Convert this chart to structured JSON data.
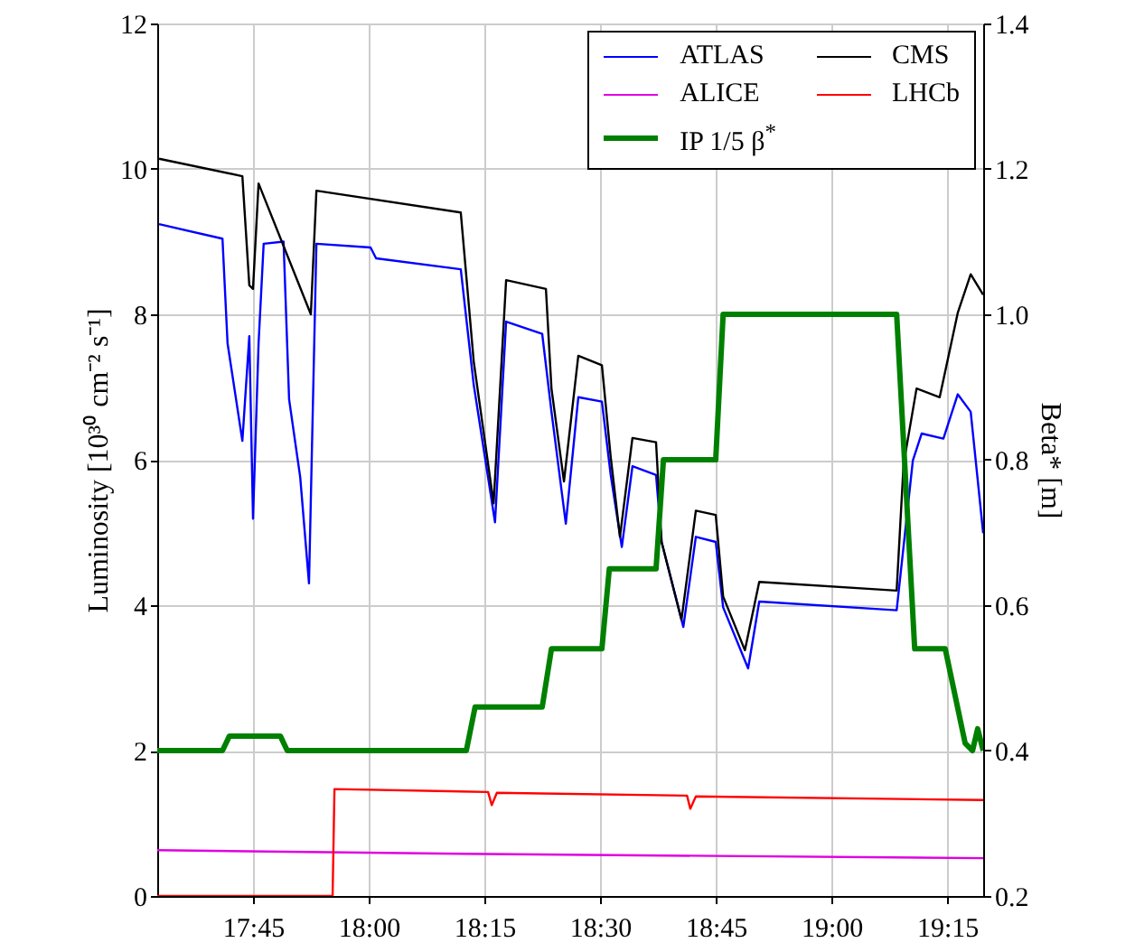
{
  "chart_data": {
    "type": "line",
    "xlabel": null,
    "ylabel": "Luminosity [10³⁰ cm⁻² s⁻¹]",
    "y2label": "Beta* [m]",
    "xlim": [
      17.543,
      19.328
    ],
    "xticks": [
      {
        "value": 17.75,
        "label": "17:45"
      },
      {
        "value": 18,
        "label": "18:00"
      },
      {
        "value": 18.25,
        "label": "18:15"
      },
      {
        "value": 18.5,
        "label": "18:30"
      },
      {
        "value": 18.75,
        "label": "18:45"
      },
      {
        "value": 19,
        "label": "19:00"
      },
      {
        "value": 19.25,
        "label": "19:15"
      }
    ],
    "ylim": [
      0,
      12
    ],
    "yticks": [
      0,
      2,
      4,
      6,
      8,
      10,
      12
    ],
    "y2lim": [
      0.2,
      1.4
    ],
    "y2ticks": [
      {
        "value": 0.2,
        "label": "0.2"
      },
      {
        "value": 0.4,
        "label": "0.4"
      },
      {
        "value": 0.6,
        "label": "0.6"
      },
      {
        "value": 0.8,
        "label": "0.8"
      },
      {
        "value": 1,
        "label": "1.0"
      },
      {
        "value": 1.2,
        "label": "1.2"
      },
      {
        "value": 1.4,
        "label": "1.4"
      }
    ],
    "grid": true,
    "legend": "top right",
    "marker": "none",
    "line_style": "solid",
    "series": [
      {
        "name": "ATLAS",
        "color": "#0000ff",
        "x": [
          17.547,
          17.684,
          17.695,
          17.727,
          17.742,
          17.75,
          17.762,
          17.773,
          17.816,
          17.828,
          17.852,
          17.871,
          17.887,
          18.004,
          18.016,
          18.199,
          18.227,
          18.273,
          18.297,
          18.375,
          18.395,
          18.426,
          18.453,
          18.504,
          18.523,
          18.547,
          18.57,
          18.621,
          18.633,
          18.68,
          18.707,
          18.75,
          18.766,
          18.82,
          18.844,
          19.141,
          19.176,
          19.195,
          19.242,
          19.273,
          19.301,
          19.328
        ],
        "values": [
          9.24,
          9.04,
          7.6,
          6.26,
          7.7,
          5.19,
          7.6,
          8.97,
          9.0,
          6.83,
          5.76,
          4.3,
          8.97,
          8.92,
          8.77,
          8.62,
          7.03,
          5.14,
          7.9,
          7.73,
          6.66,
          5.12,
          6.86,
          6.8,
          5.79,
          4.8,
          5.91,
          5.79,
          4.87,
          3.7,
          4.94,
          4.87,
          3.97,
          3.13,
          4.05,
          3.93,
          5.99,
          6.36,
          6.29,
          6.9,
          6.66,
          4.99
        ]
      },
      {
        "name": "CMS",
        "color": "#000000",
        "x": [
          17.547,
          17.727,
          17.742,
          17.75,
          17.762,
          17.875,
          17.887,
          18.199,
          18.227,
          18.27,
          18.297,
          18.383,
          18.395,
          18.422,
          18.453,
          18.504,
          18.523,
          18.543,
          18.57,
          18.621,
          18.633,
          18.676,
          18.707,
          18.75,
          18.766,
          18.813,
          18.844,
          19.141,
          19.156,
          19.184,
          19.234,
          19.273,
          19.301,
          19.328
        ],
        "values": [
          10.14,
          9.9,
          8.4,
          8.35,
          9.8,
          8.0,
          9.7,
          9.4,
          7.35,
          5.4,
          8.47,
          8.35,
          6.98,
          5.7,
          7.43,
          7.3,
          6.04,
          4.94,
          6.3,
          6.24,
          4.87,
          3.8,
          5.3,
          5.24,
          4.12,
          3.38,
          4.32,
          4.2,
          5.94,
          6.98,
          6.86,
          8.02,
          8.55,
          8.27
        ]
      },
      {
        "name": "ALICE",
        "color": "#e000e0",
        "x": [
          17.543,
          18.2,
          19.328
        ],
        "values": [
          0.63,
          0.58,
          0.52
        ]
      },
      {
        "name": "LHCb",
        "color": "#ff0000",
        "x": [
          17.543,
          17.922,
          17.926,
          18.258,
          18.266,
          18.277,
          18.688,
          18.695,
          18.707,
          19.328
        ],
        "values": [
          0,
          0,
          1.47,
          1.43,
          1.25,
          1.42,
          1.38,
          1.2,
          1.37,
          1.32
        ]
      },
      {
        "name": "IP 1/5 β$^{*}$",
        "color": "#008000",
        "axis": "y2",
        "x": [
          17.543,
          17.684,
          17.699,
          17.809,
          17.824,
          18.211,
          18.23,
          18.375,
          18.395,
          18.504,
          18.52,
          18.621,
          18.637,
          18.75,
          18.766,
          19.141,
          19.18,
          19.246,
          19.289,
          19.305,
          19.316,
          19.328
        ],
        "values": [
          0.4,
          0.4,
          0.42,
          0.42,
          0.4,
          0.4,
          0.46,
          0.46,
          0.54,
          0.54,
          0.65,
          0.65,
          0.8,
          0.8,
          1.0,
          1.0,
          0.54,
          0.54,
          0.41,
          0.4,
          0.43,
          0.4
        ]
      }
    ]
  }
}
